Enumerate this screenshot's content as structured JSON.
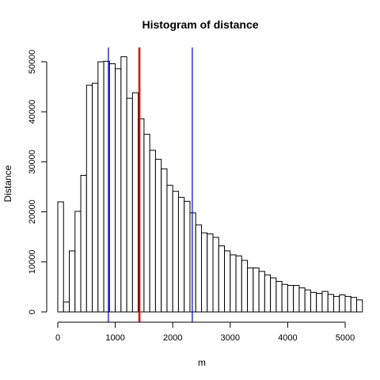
{
  "chart_data": {
    "type": "bar",
    "title": "Histogram of distance",
    "xlabel": "m",
    "ylabel": "Distance",
    "bin_width": 100,
    "bin_start": 0,
    "values": [
      22000,
      2000,
      12200,
      20100,
      27300,
      45300,
      45700,
      50000,
      50100,
      49600,
      48600,
      51000,
      42700,
      43800,
      38600,
      35500,
      32300,
      30500,
      28600,
      25300,
      24100,
      22900,
      22100,
      19800,
      17400,
      15800,
      15600,
      14900,
      13200,
      12200,
      11400,
      11200,
      10300,
      8800,
      8800,
      8100,
      7400,
      6800,
      6100,
      5500,
      5300,
      5300,
      4800,
      4400,
      3900,
      3700,
      4100,
      3500,
      3100,
      3400,
      3100,
      2900,
      2400
    ],
    "x_ticks": [
      0,
      1000,
      2000,
      3000,
      4000,
      5000
    ],
    "y_ticks": [
      0,
      10000,
      20000,
      30000,
      40000,
      50000
    ],
    "xlim": [
      0,
      5300
    ],
    "ylim": [
      0,
      52000
    ],
    "vlines": [
      {
        "x": 880,
        "color": "#0000cc"
      },
      {
        "x": 1420,
        "color": "#dd0000"
      },
      {
        "x": 2340,
        "color": "#0000cc"
      }
    ]
  }
}
